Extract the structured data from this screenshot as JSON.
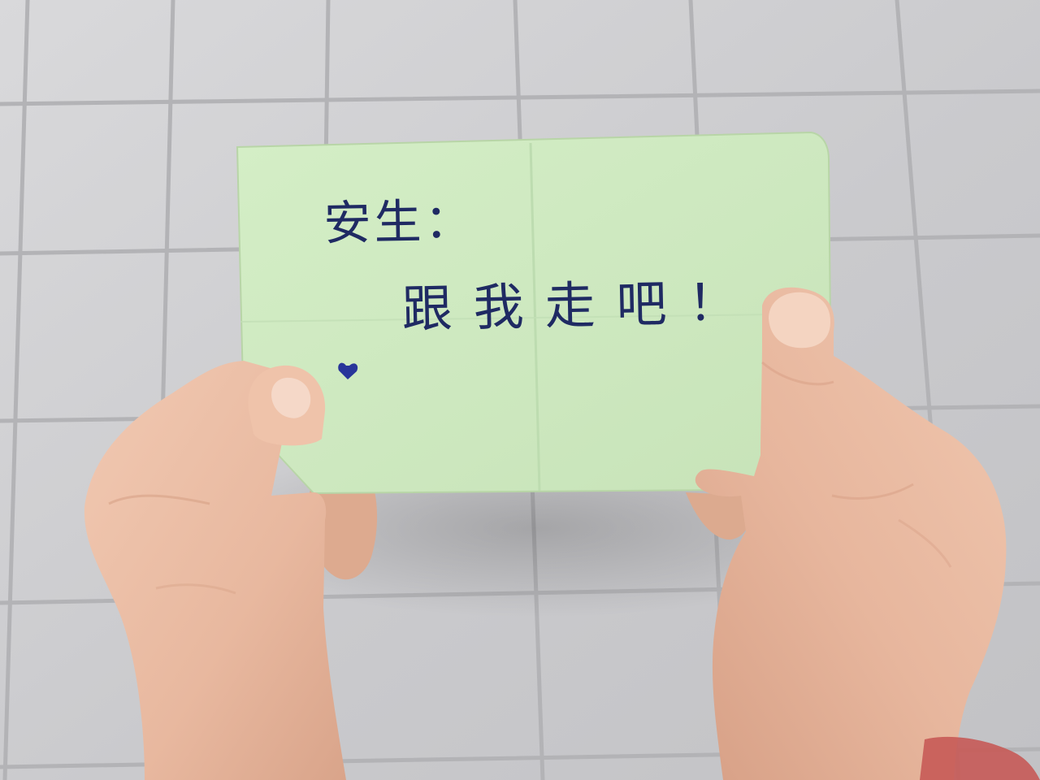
{
  "note": {
    "salutation": "安生：",
    "message": "跟我走吧！",
    "paper_color": "#cde8bf",
    "ink_color": "#1f2a63"
  },
  "scene": {
    "floor_color": "#c9c9cb",
    "grout_color": "#b4b4b7",
    "skin_color": "#e8baa0"
  }
}
